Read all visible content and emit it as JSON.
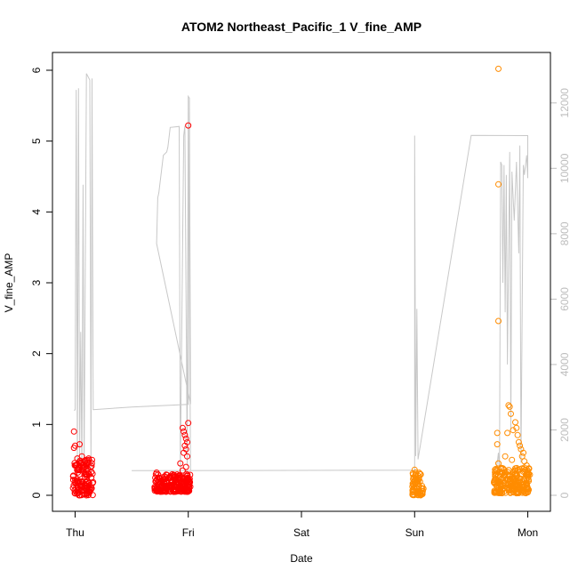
{
  "chart_data": {
    "type": "scatter",
    "title": "ATOM2 Northeast_Pacific_1 V_fine_AMP",
    "xlabel": "Date",
    "ylabel": "V_fine_AMP",
    "y2label": "",
    "x_ticks": [
      "Thu",
      "Fri",
      "Sat",
      "Sun",
      "Mon"
    ],
    "x_tick_positions": [
      0,
      1,
      2,
      3,
      4
    ],
    "xlim": [
      -0.2,
      4.2
    ],
    "ylim": [
      0,
      6
    ],
    "y_ticks": [
      "0",
      "1",
      "2",
      "3",
      "4",
      "5",
      "6"
    ],
    "y2lim": [
      0,
      13000
    ],
    "y2_ticks": [
      "0",
      "2000",
      "4000",
      "6000",
      "8000",
      "10000",
      "12000"
    ],
    "grid": false,
    "colors": {
      "red_series": "#ff0000",
      "orange_series": "#ff8c00",
      "secondary_line": "#c8c8c8",
      "secondary_axis": "#bdbdbd"
    },
    "series": [
      {
        "type": "scatter",
        "color": "#ff0000",
        "axis": "left",
        "clusters": [
          {
            "x_start": -0.02,
            "x_end": 0.16,
            "y_min": 0.0,
            "y_max": 0.5
          },
          {
            "x_start": 0.7,
            "x_end": 1.02,
            "y_min": 0.05,
            "y_max": 0.3
          }
        ],
        "points": [
          [
            -0.01,
            0.9
          ],
          [
            -0.01,
            0.67
          ],
          [
            0.0,
            0.7
          ],
          [
            0.02,
            0.52
          ],
          [
            0.04,
            0.72
          ],
          [
            0.06,
            0.55
          ],
          [
            0.09,
            0.48
          ],
          [
            0.12,
            0.52
          ],
          [
            0.15,
            0.5
          ],
          [
            0.03,
            0.05
          ],
          [
            0.1,
            0.02
          ],
          [
            0.14,
            0.1
          ],
          [
            0.72,
            0.32
          ],
          [
            0.74,
            0.25
          ],
          [
            0.95,
            0.95
          ],
          [
            0.96,
            0.9
          ],
          [
            0.97,
            0.85
          ],
          [
            0.98,
            0.8
          ],
          [
            0.99,
            0.75
          ],
          [
            0.97,
            0.7
          ],
          [
            0.98,
            0.65
          ],
          [
            1.0,
            1.02
          ],
          [
            1.0,
            5.22
          ],
          [
            0.99,
            0.55
          ],
          [
            0.96,
            0.6
          ],
          [
            0.93,
            0.45
          ],
          [
            0.95,
            0.35
          ],
          [
            0.98,
            0.4
          ],
          [
            0.89,
            0.22
          ],
          [
            0.85,
            0.18
          ]
        ]
      },
      {
        "type": "scatter",
        "color": "#ff8c00",
        "axis": "left",
        "clusters": [
          {
            "x_start": 2.98,
            "x_end": 3.08,
            "y_min": 0.0,
            "y_max": 0.35
          },
          {
            "x_start": 3.7,
            "x_end": 4.02,
            "y_min": 0.03,
            "y_max": 0.4
          }
        ],
        "points": [
          [
            3.0,
            0.36
          ],
          [
            3.01,
            0.32
          ],
          [
            3.02,
            0.05
          ],
          [
            3.04,
            0.02
          ],
          [
            3.06,
            0.1
          ],
          [
            3.74,
            6.02
          ],
          [
            3.74,
            4.39
          ],
          [
            3.74,
            2.46
          ],
          [
            3.73,
            0.88
          ],
          [
            3.73,
            0.72
          ],
          [
            3.74,
            0.45
          ],
          [
            3.8,
            0.55
          ],
          [
            3.82,
            0.88
          ],
          [
            3.83,
            1.27
          ],
          [
            3.84,
            1.25
          ],
          [
            3.85,
            1.15
          ],
          [
            3.87,
            0.92
          ],
          [
            3.89,
            1.03
          ],
          [
            3.9,
            0.95
          ],
          [
            3.91,
            0.85
          ],
          [
            3.92,
            0.75
          ],
          [
            3.93,
            0.7
          ],
          [
            3.94,
            0.65
          ],
          [
            3.95,
            0.55
          ],
          [
            3.96,
            0.6
          ],
          [
            3.97,
            0.48
          ],
          [
            3.99,
            0.42
          ],
          [
            4.0,
            0.35
          ],
          [
            4.01,
            0.38
          ],
          [
            3.88,
            0.3
          ],
          [
            3.78,
            0.32
          ],
          [
            3.76,
            0.12
          ],
          [
            3.86,
            0.5
          ],
          [
            3.93,
            0.2
          ]
        ]
      },
      {
        "type": "line",
        "color": "#c8c8c8",
        "axis": "right",
        "points": [
          [
            -0.01,
            2600
          ],
          [
            0.0,
            2610
          ],
          [
            0.01,
            12400
          ],
          [
            0.02,
            1000
          ],
          [
            0.03,
            12450
          ],
          [
            0.04,
            1200
          ],
          [
            0.05,
            5000
          ],
          [
            0.06,
            700
          ],
          [
            0.07,
            9500
          ],
          [
            0.08,
            800
          ],
          [
            0.1,
            12900
          ],
          [
            0.13,
            12700
          ],
          [
            0.14,
            800
          ],
          [
            0.15,
            12750
          ],
          [
            0.16,
            2620
          ],
          [
            0.5,
            2700
          ],
          [
            1.0,
            2780
          ],
          [
            1.0,
            12200
          ],
          [
            1.01,
            12150
          ],
          [
            1.02,
            2790
          ],
          [
            0.72,
            7700
          ],
          [
            0.73,
            9100
          ],
          [
            0.74,
            9250
          ],
          [
            0.78,
            10400
          ],
          [
            0.81,
            10500
          ],
          [
            0.82,
            10650
          ],
          [
            0.84,
            11250
          ],
          [
            0.92,
            11280
          ],
          [
            0.93,
            700
          ],
          [
            0.96,
            11000
          ],
          [
            0.97,
            11300
          ],
          [
            0.99,
            900
          ],
          [
            1.0,
            12100
          ],
          [
            1.02,
            760
          ],
          [
            0.5,
            755
          ],
          [
            1.5,
            760
          ],
          [
            2.5,
            765
          ],
          [
            3.0,
            770
          ],
          [
            3.0,
            11000
          ],
          [
            3.01,
            1200
          ],
          [
            3.02,
            5700
          ],
          [
            3.03,
            1100
          ],
          [
            3.5,
            11010
          ],
          [
            4.0,
            11000
          ],
          [
            4.0,
            9700
          ],
          [
            3.99,
            10400
          ],
          [
            3.97,
            9800
          ],
          [
            3.96,
            10100
          ],
          [
            3.94,
            1000
          ],
          [
            3.93,
            10700
          ],
          [
            3.92,
            7400
          ],
          [
            3.9,
            10200
          ],
          [
            3.88,
            8400
          ],
          [
            3.86,
            9900
          ],
          [
            3.85,
            2000
          ],
          [
            3.84,
            10500
          ],
          [
            3.82,
            4000
          ],
          [
            3.81,
            9800
          ],
          [
            3.8,
            5600
          ],
          [
            3.79,
            10100
          ],
          [
            3.78,
            6500
          ],
          [
            3.77,
            10100
          ],
          [
            3.76,
            10200
          ],
          [
            3.75,
            700
          ],
          [
            3.74,
            1300
          ],
          [
            3.73,
            1000
          ],
          [
            3.72,
            800
          ]
        ]
      }
    ]
  }
}
